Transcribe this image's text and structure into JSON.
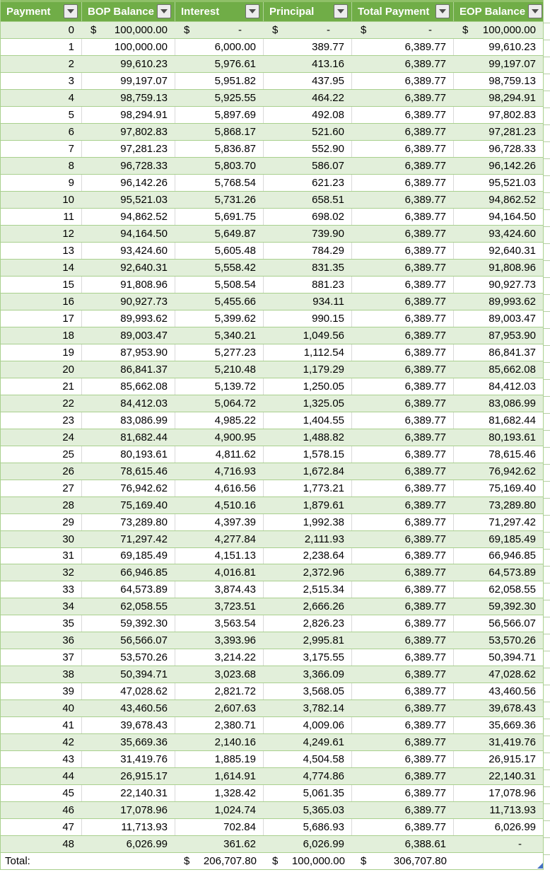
{
  "table": {
    "columns": [
      {
        "label": "Payment"
      },
      {
        "label": "BOP Balance"
      },
      {
        "label": "Interest"
      },
      {
        "label": "Principal"
      },
      {
        "label": "Total Payment"
      },
      {
        "label": "EOP Balance"
      }
    ],
    "rows": [
      [
        "0",
        "$|100,000.00",
        "$|-",
        "$|-",
        "$|-",
        "$|100,000.00"
      ],
      [
        "1",
        "100,000.00",
        "6,000.00",
        "389.77",
        "6,389.77",
        "99,610.23"
      ],
      [
        "2",
        "99,610.23",
        "5,976.61",
        "413.16",
        "6,389.77",
        "99,197.07"
      ],
      [
        "3",
        "99,197.07",
        "5,951.82",
        "437.95",
        "6,389.77",
        "98,759.13"
      ],
      [
        "4",
        "98,759.13",
        "5,925.55",
        "464.22",
        "6,389.77",
        "98,294.91"
      ],
      [
        "5",
        "98,294.91",
        "5,897.69",
        "492.08",
        "6,389.77",
        "97,802.83"
      ],
      [
        "6",
        "97,802.83",
        "5,868.17",
        "521.60",
        "6,389.77",
        "97,281.23"
      ],
      [
        "7",
        "97,281.23",
        "5,836.87",
        "552.90",
        "6,389.77",
        "96,728.33"
      ],
      [
        "8",
        "96,728.33",
        "5,803.70",
        "586.07",
        "6,389.77",
        "96,142.26"
      ],
      [
        "9",
        "96,142.26",
        "5,768.54",
        "621.23",
        "6,389.77",
        "95,521.03"
      ],
      [
        "10",
        "95,521.03",
        "5,731.26",
        "658.51",
        "6,389.77",
        "94,862.52"
      ],
      [
        "11",
        "94,862.52",
        "5,691.75",
        "698.02",
        "6,389.77",
        "94,164.50"
      ],
      [
        "12",
        "94,164.50",
        "5,649.87",
        "739.90",
        "6,389.77",
        "93,424.60"
      ],
      [
        "13",
        "93,424.60",
        "5,605.48",
        "784.29",
        "6,389.77",
        "92,640.31"
      ],
      [
        "14",
        "92,640.31",
        "5,558.42",
        "831.35",
        "6,389.77",
        "91,808.96"
      ],
      [
        "15",
        "91,808.96",
        "5,508.54",
        "881.23",
        "6,389.77",
        "90,927.73"
      ],
      [
        "16",
        "90,927.73",
        "5,455.66",
        "934.11",
        "6,389.77",
        "89,993.62"
      ],
      [
        "17",
        "89,993.62",
        "5,399.62",
        "990.15",
        "6,389.77",
        "89,003.47"
      ],
      [
        "18",
        "89,003.47",
        "5,340.21",
        "1,049.56",
        "6,389.77",
        "87,953.90"
      ],
      [
        "19",
        "87,953.90",
        "5,277.23",
        "1,112.54",
        "6,389.77",
        "86,841.37"
      ],
      [
        "20",
        "86,841.37",
        "5,210.48",
        "1,179.29",
        "6,389.77",
        "85,662.08"
      ],
      [
        "21",
        "85,662.08",
        "5,139.72",
        "1,250.05",
        "6,389.77",
        "84,412.03"
      ],
      [
        "22",
        "84,412.03",
        "5,064.72",
        "1,325.05",
        "6,389.77",
        "83,086.99"
      ],
      [
        "23",
        "83,086.99",
        "4,985.22",
        "1,404.55",
        "6,389.77",
        "81,682.44"
      ],
      [
        "24",
        "81,682.44",
        "4,900.95",
        "1,488.82",
        "6,389.77",
        "80,193.61"
      ],
      [
        "25",
        "80,193.61",
        "4,811.62",
        "1,578.15",
        "6,389.77",
        "78,615.46"
      ],
      [
        "26",
        "78,615.46",
        "4,716.93",
        "1,672.84",
        "6,389.77",
        "76,942.62"
      ],
      [
        "27",
        "76,942.62",
        "4,616.56",
        "1,773.21",
        "6,389.77",
        "75,169.40"
      ],
      [
        "28",
        "75,169.40",
        "4,510.16",
        "1,879.61",
        "6,389.77",
        "73,289.80"
      ],
      [
        "29",
        "73,289.80",
        "4,397.39",
        "1,992.38",
        "6,389.77",
        "71,297.42"
      ],
      [
        "30",
        "71,297.42",
        "4,277.84",
        "2,111.93",
        "6,389.77",
        "69,185.49"
      ],
      [
        "31",
        "69,185.49",
        "4,151.13",
        "2,238.64",
        "6,389.77",
        "66,946.85"
      ],
      [
        "32",
        "66,946.85",
        "4,016.81",
        "2,372.96",
        "6,389.77",
        "64,573.89"
      ],
      [
        "33",
        "64,573.89",
        "3,874.43",
        "2,515.34",
        "6,389.77",
        "62,058.55"
      ],
      [
        "34",
        "62,058.55",
        "3,723.51",
        "2,666.26",
        "6,389.77",
        "59,392.30"
      ],
      [
        "35",
        "59,392.30",
        "3,563.54",
        "2,826.23",
        "6,389.77",
        "56,566.07"
      ],
      [
        "36",
        "56,566.07",
        "3,393.96",
        "2,995.81",
        "6,389.77",
        "53,570.26"
      ],
      [
        "37",
        "53,570.26",
        "3,214.22",
        "3,175.55",
        "6,389.77",
        "50,394.71"
      ],
      [
        "38",
        "50,394.71",
        "3,023.68",
        "3,366.09",
        "6,389.77",
        "47,028.62"
      ],
      [
        "39",
        "47,028.62",
        "2,821.72",
        "3,568.05",
        "6,389.77",
        "43,460.56"
      ],
      [
        "40",
        "43,460.56",
        "2,607.63",
        "3,782.14",
        "6,389.77",
        "39,678.43"
      ],
      [
        "41",
        "39,678.43",
        "2,380.71",
        "4,009.06",
        "6,389.77",
        "35,669.36"
      ],
      [
        "42",
        "35,669.36",
        "2,140.16",
        "4,249.61",
        "6,389.77",
        "31,419.76"
      ],
      [
        "43",
        "31,419.76",
        "1,885.19",
        "4,504.58",
        "6,389.77",
        "26,915.17"
      ],
      [
        "44",
        "26,915.17",
        "1,614.91",
        "4,774.86",
        "6,389.77",
        "22,140.31"
      ],
      [
        "45",
        "22,140.31",
        "1,328.42",
        "5,061.35",
        "6,389.77",
        "17,078.96"
      ],
      [
        "46",
        "17,078.96",
        "1,024.74",
        "5,365.03",
        "6,389.77",
        "11,713.93"
      ],
      [
        "47",
        "11,713.93",
        "702.84",
        "5,686.93",
        "6,389.77",
        "6,026.99"
      ],
      [
        "48",
        "6,026.99",
        "361.62",
        "6,026.99",
        "6,388.61",
        "-"
      ]
    ],
    "total_row": [
      "Total:",
      "",
      "$|206,707.80",
      "$|100,000.00",
      "$|306,707.80",
      ""
    ]
  },
  "icons": {
    "filter_dropdown": "chevron-down",
    "resize_handle": "table-resize-corner"
  },
  "colors": {
    "header_bg": "#70AD47",
    "band_green": "#E2EFDA",
    "border_green": "#A9D08E",
    "divider_gray": "#D9D9D9",
    "handle_blue": "#4472C4"
  }
}
